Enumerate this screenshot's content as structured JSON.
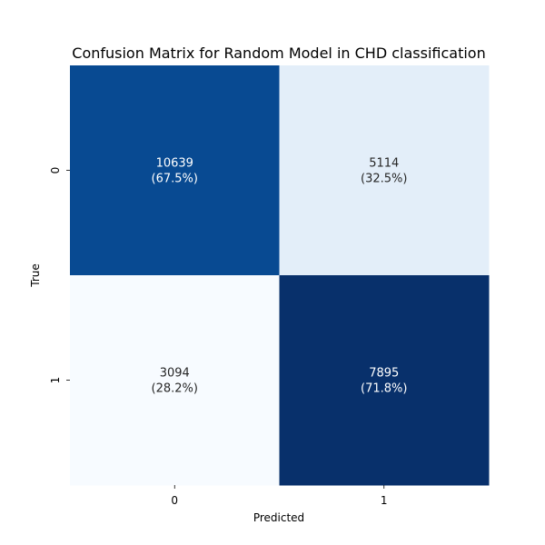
{
  "chart_data": {
    "type": "heatmap",
    "title": "Confusion Matrix for Random Model in CHD classification",
    "xlabel": "Predicted",
    "ylabel": "True",
    "x_categories": [
      "0",
      "1"
    ],
    "y_categories": [
      "0",
      "1"
    ],
    "values": [
      [
        10639,
        5114
      ],
      [
        3094,
        7895
      ]
    ],
    "annotations": [
      [
        "10639\n(67.5%)",
        "5114\n(32.5%)"
      ],
      [
        "3094\n(28.2%)",
        "7895\n(71.8%)"
      ]
    ],
    "colormap": "Blues",
    "color_high": "#08306b",
    "color_low": "#f7fbff",
    "colorbar": false,
    "grid": false
  }
}
